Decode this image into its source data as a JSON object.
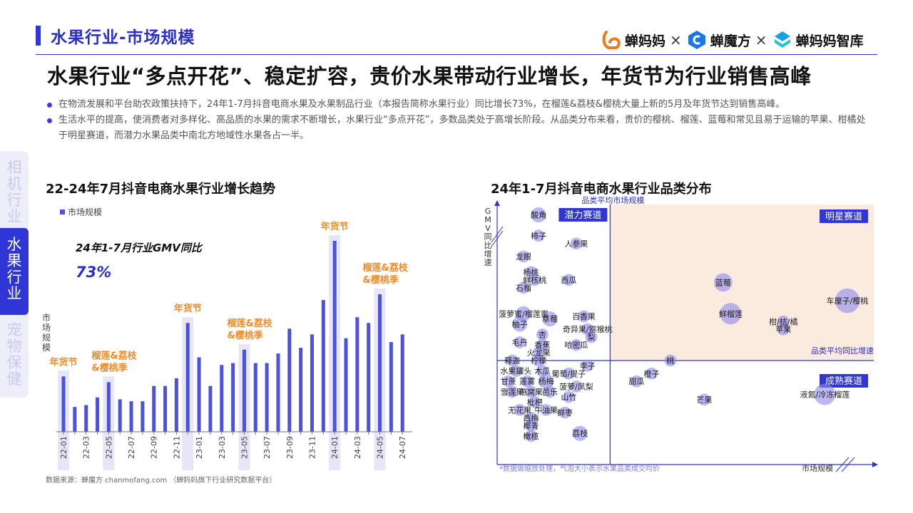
{
  "header": {
    "section_title": "水果行业-市场规模",
    "brands": [
      {
        "name": "蝉妈妈",
        "icon": "chanmama-logo-icon",
        "color": "#f07a1a"
      },
      {
        "name": "蝉魔方",
        "icon": "chanmofang-logo-icon",
        "color": "#1a78e6"
      },
      {
        "name": "蝉妈妈智库",
        "icon": "chanmama-zhiku-logo-icon",
        "color": "#1aa0e6"
      }
    ],
    "separator": "×"
  },
  "headline": "水果行业“多点开花”、稳定扩容，贵价水果带动行业增长，年货节为行业销售高峰",
  "bullets": [
    "在物流发展和平台助农政策扶持下，24年1-7月抖音电商水果及水果制品行业（本报告简称水果行业）同比增长73%，在榴莲&荔枝&樱桃大量上新的5月及年货节达到销售高峰。",
    "生活水平的提高，使消费者对多样化、高品质的水果的需求不断增长，水果行业“多点开花”，多数品类处于高增长阶段。从品类分布来看，贵价的樱桃、榴莲、蓝莓和常见且易于运输的苹果、柑橘处于明星赛道，而潜力水果品类中南北方地域性水果各占一半。"
  ],
  "side_nav": [
    {
      "label": "相机行业",
      "active": false
    },
    {
      "label": "水果行业",
      "active": true
    },
    {
      "label": "宠物保健",
      "active": false
    }
  ],
  "colors": {
    "accent": "#2f35d6",
    "bar": "#4d52dc",
    "highlight_band": "#e6e6f8",
    "annotation": "#f08c2a",
    "star_quadrant": "#fbeade",
    "bubble": "#8d88ec"
  },
  "footer": "数据来源：蝉魔方 chanmofang.com （蝉妈妈旗下行业研究数据平台）",
  "chart_data": [
    {
      "type": "bar",
      "title": "22-24年7月抖音电商水果行业增长趋势",
      "legend": "市场规模",
      "ylabel": "市场规模",
      "kpi_label": "24年1-7月行业GMV同比",
      "kpi_value": "73%",
      "ylim": [
        0,
        100
      ],
      "categories": [
        "22-01",
        "22-02",
        "22-03",
        "22-04",
        "22-05",
        "22-06",
        "22-07",
        "22-08",
        "22-09",
        "22-10",
        "22-11",
        "22-12",
        "23-01",
        "23-02",
        "23-03",
        "23-04",
        "23-05",
        "23-06",
        "23-07",
        "23-08",
        "23-09",
        "23-10",
        "23-11",
        "23-12",
        "24-01",
        "24-02",
        "24-03",
        "24-04",
        "24-05",
        "24-06",
        "24-07"
      ],
      "tick_labels": [
        "22-01",
        "22-03",
        "22-05",
        "22-07",
        "22-09",
        "22-11",
        "23-01",
        "23-03",
        "23-05",
        "23-07",
        "23-09",
        "23-11",
        "24-01",
        "24-03",
        "24-05",
        "24-07"
      ],
      "values": [
        29,
        13,
        14,
        18,
        26,
        17,
        16,
        16,
        24,
        24,
        28,
        57,
        39,
        24,
        35,
        36,
        43,
        36,
        36,
        41,
        54,
        44,
        51,
        69,
        100,
        49,
        60,
        57,
        72,
        47,
        51
      ],
      "highlights": [
        {
          "category": "22-01",
          "label": "年货节"
        },
        {
          "category": "22-05",
          "label": "榴莲&荔枝\n&樱桃季"
        },
        {
          "category": "22-12",
          "label": "年货节"
        },
        {
          "category": "23-05",
          "label": "榴莲&荔枝\n&樱桃季"
        },
        {
          "category": "24-01",
          "label": "年货节"
        },
        {
          "category": "24-05",
          "label": "榴莲&荔枝\n&樱桃季"
        }
      ]
    },
    {
      "type": "scatter",
      "title": "24年1-7月抖音电商水果行业品类分布",
      "xlabel": "市场规模",
      "ylabel": "GMV同比增速",
      "x_ref_label": "品类平均市场规模",
      "y_ref_label": "品类平均同比增速",
      "note": "*数据做缩放处理，气泡大小表示水果品类成交均价",
      "xlim": [
        0,
        100
      ],
      "ylim": [
        0,
        100
      ],
      "x_ref": 30,
      "y_ref": 40,
      "quadrants": [
        "潜力赛道",
        "明星赛道",
        "成熟赛道"
      ],
      "points": [
        {
          "name": "酸角",
          "x": 11,
          "y": 96,
          "size": 3
        },
        {
          "name": "柿子",
          "x": 11,
          "y": 88,
          "size": 2
        },
        {
          "name": "人参果",
          "x": 21,
          "y": 85,
          "size": 2
        },
        {
          "name": "龙眼",
          "x": 7,
          "y": 80,
          "size": 2
        },
        {
          "name": "杨桃",
          "x": 9,
          "y": 74,
          "size": 2
        },
        {
          "name": "鲜核桃",
          "x": 10,
          "y": 71,
          "size": 2
        },
        {
          "name": "石榴",
          "x": 7,
          "y": 68,
          "size": 2
        },
        {
          "name": "西瓜",
          "x": 19,
          "y": 71,
          "size": 2
        },
        {
          "name": "蓝莓",
          "x": 60,
          "y": 70,
          "size": 4
        },
        {
          "name": "车厘子/樱桃",
          "x": 93,
          "y": 63,
          "size": 6
        },
        {
          "name": "菠萝蜜/榴莲蜜",
          "x": 7,
          "y": 58,
          "size": 3
        },
        {
          "name": "鲜榴莲",
          "x": 62,
          "y": 58,
          "size": 5
        },
        {
          "name": "柑/桔/橘",
          "x": 76,
          "y": 55,
          "size": 2
        },
        {
          "name": "柚子",
          "x": 6,
          "y": 54,
          "size": 3
        },
        {
          "name": "草莓",
          "x": 14,
          "y": 56,
          "size": 3
        },
        {
          "name": "百香果",
          "x": 23,
          "y": 57,
          "size": 2
        },
        {
          "name": "苹果",
          "x": 76,
          "y": 52,
          "size": 2
        },
        {
          "name": "奇异果/猕猴桃",
          "x": 24,
          "y": 52,
          "size": 2
        },
        {
          "name": "杏",
          "x": 12,
          "y": 50,
          "size": 2
        },
        {
          "name": "梨",
          "x": 25,
          "y": 49,
          "size": 2
        },
        {
          "name": "毛丹",
          "x": 6,
          "y": 47,
          "size": 2
        },
        {
          "name": "香蕉",
          "x": 12,
          "y": 46,
          "size": 2
        },
        {
          "name": "哈密瓜",
          "x": 21,
          "y": 46,
          "size": 2
        },
        {
          "name": "火龙果",
          "x": 11,
          "y": 43,
          "size": 2
        },
        {
          "name": "释迦",
          "x": 4,
          "y": 40,
          "size": 2
        },
        {
          "name": "柠檬",
          "x": 11,
          "y": 40,
          "size": 2
        },
        {
          "name": "李子",
          "x": 24,
          "y": 38,
          "size": 2
        },
        {
          "name": "桃",
          "x": 46,
          "y": 40,
          "size": 2
        },
        {
          "name": "水果罐头",
          "x": 5,
          "y": 36,
          "size": 2
        },
        {
          "name": "木瓜",
          "x": 12,
          "y": 36,
          "size": 2
        },
        {
          "name": "葡萄/提子",
          "x": 19,
          "y": 35,
          "size": 2
        },
        {
          "name": "橙子",
          "x": 41,
          "y": 35,
          "size": 2
        },
        {
          "name": "甘蔗",
          "x": 3,
          "y": 32,
          "size": 2
        },
        {
          "name": "莲雾",
          "x": 8,
          "y": 32,
          "size": 2
        },
        {
          "name": "杨梅",
          "x": 13,
          "y": 32,
          "size": 3
        },
        {
          "name": "甜瓜",
          "x": 37,
          "y": 32,
          "size": 2
        },
        {
          "name": "菠萝/凤梨",
          "x": 21,
          "y": 30,
          "size": 2
        },
        {
          "name": "雪莲果",
          "x": 4,
          "y": 28,
          "size": 2
        },
        {
          "name": "燕窝果",
          "x": 9,
          "y": 28,
          "size": 2
        },
        {
          "name": "芭乐",
          "x": 14,
          "y": 28,
          "size": 2
        },
        {
          "name": "山竹",
          "x": 19,
          "y": 26,
          "size": 2
        },
        {
          "name": "枇杷",
          "x": 10,
          "y": 24,
          "size": 2
        },
        {
          "name": "芒果",
          "x": 55,
          "y": 25,
          "size": 2
        },
        {
          "name": "液氮/冷冻榴莲",
          "x": 87,
          "y": 27,
          "size": 5
        },
        {
          "name": "无花果",
          "x": 6,
          "y": 21,
          "size": 2
        },
        {
          "name": "牛油果",
          "x": 13,
          "y": 21,
          "size": 2
        },
        {
          "name": "鲜枣",
          "x": 18,
          "y": 20,
          "size": 2
        },
        {
          "name": "西梅",
          "x": 9,
          "y": 18,
          "size": 2
        },
        {
          "name": "椰青",
          "x": 9,
          "y": 15,
          "size": 2
        },
        {
          "name": "荔枝",
          "x": 22,
          "y": 12,
          "size": 3
        },
        {
          "name": "橄榄",
          "x": 9,
          "y": 11,
          "size": 2
        }
      ]
    }
  ]
}
